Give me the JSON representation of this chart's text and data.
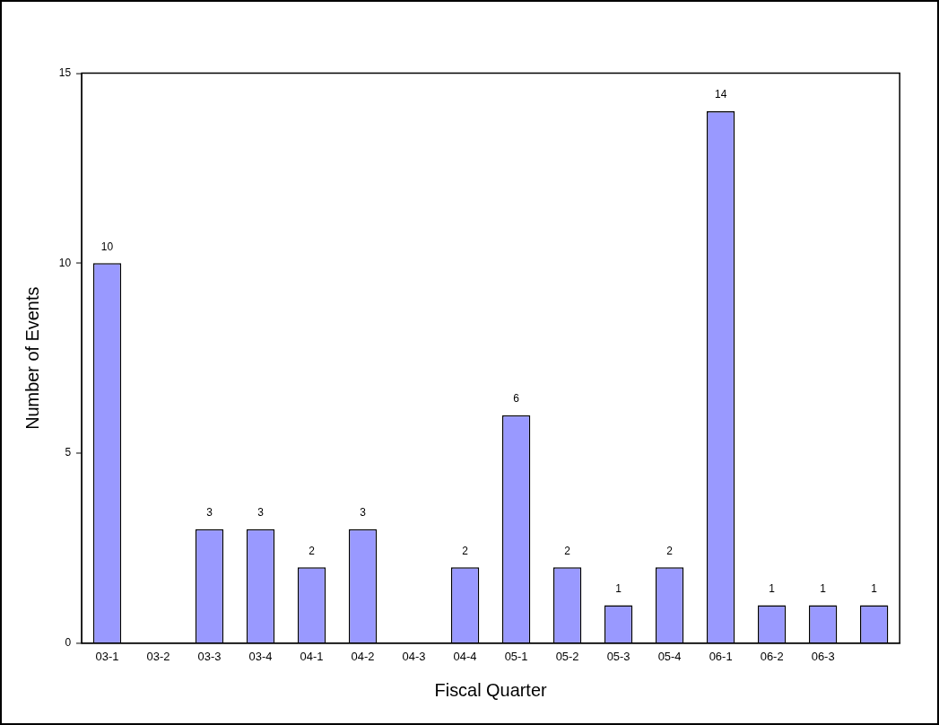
{
  "chart_data": {
    "type": "bar",
    "xlabel": "Fiscal Quarter",
    "ylabel": "Number of Events",
    "categories": [
      "03-1",
      "03-2",
      "03-3",
      "03-4",
      "04-1",
      "04-2",
      "04-3",
      "04-4",
      "05-1",
      "05-2",
      "05-3",
      "05-4",
      "06-1",
      "06-2",
      "06-3",
      null
    ],
    "values": [
      10,
      null,
      3,
      3,
      2,
      3,
      null,
      2,
      6,
      2,
      1,
      2,
      14,
      1,
      1,
      1
    ],
    "color": "#9999ff",
    "ylim": [
      0,
      15
    ],
    "yticks": [
      0,
      5,
      10,
      15
    ],
    "grid": false,
    "legend": false,
    "data_labels": true
  }
}
